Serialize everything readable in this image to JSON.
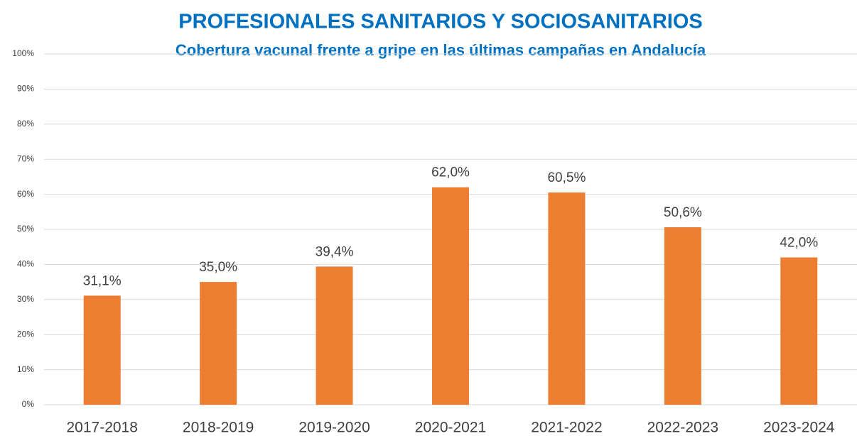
{
  "chart_data": {
    "type": "bar",
    "title": "PROFESIONALES SANITARIOS Y SOCIOSANITARIOS",
    "subtitle": "Cobertura vacunal frente a gripe en las últimas campañas en Andalucía",
    "categories": [
      "2017-2018",
      "2018-2019",
      "2019-2020",
      "2020-2021",
      "2021-2022",
      "2022-2023",
      "2023-2024"
    ],
    "values": [
      31.1,
      35.0,
      39.4,
      62.0,
      60.5,
      50.6,
      42.0
    ],
    "value_labels": [
      "31,1%",
      "35,0%",
      "39,4%",
      "62,0%",
      "60,5%",
      "50,6%",
      "42,0%"
    ],
    "color": "#ed7d31",
    "ylim": [
      0,
      100
    ],
    "yticks": [
      {
        "value": 0,
        "label": "0%"
      },
      {
        "value": 10,
        "label": "10%"
      },
      {
        "value": 20,
        "label": "20%"
      },
      {
        "value": 30,
        "label": "30%"
      },
      {
        "value": 40,
        "label": "40%"
      },
      {
        "value": 50,
        "label": "50%"
      },
      {
        "value": 60,
        "label": "60%"
      },
      {
        "value": 70,
        "label": "70%"
      },
      {
        "value": 80,
        "label": "80%"
      },
      {
        "value": 90,
        "label": "90%"
      },
      {
        "value": 100,
        "label": "100%"
      }
    ],
    "grid": true
  }
}
